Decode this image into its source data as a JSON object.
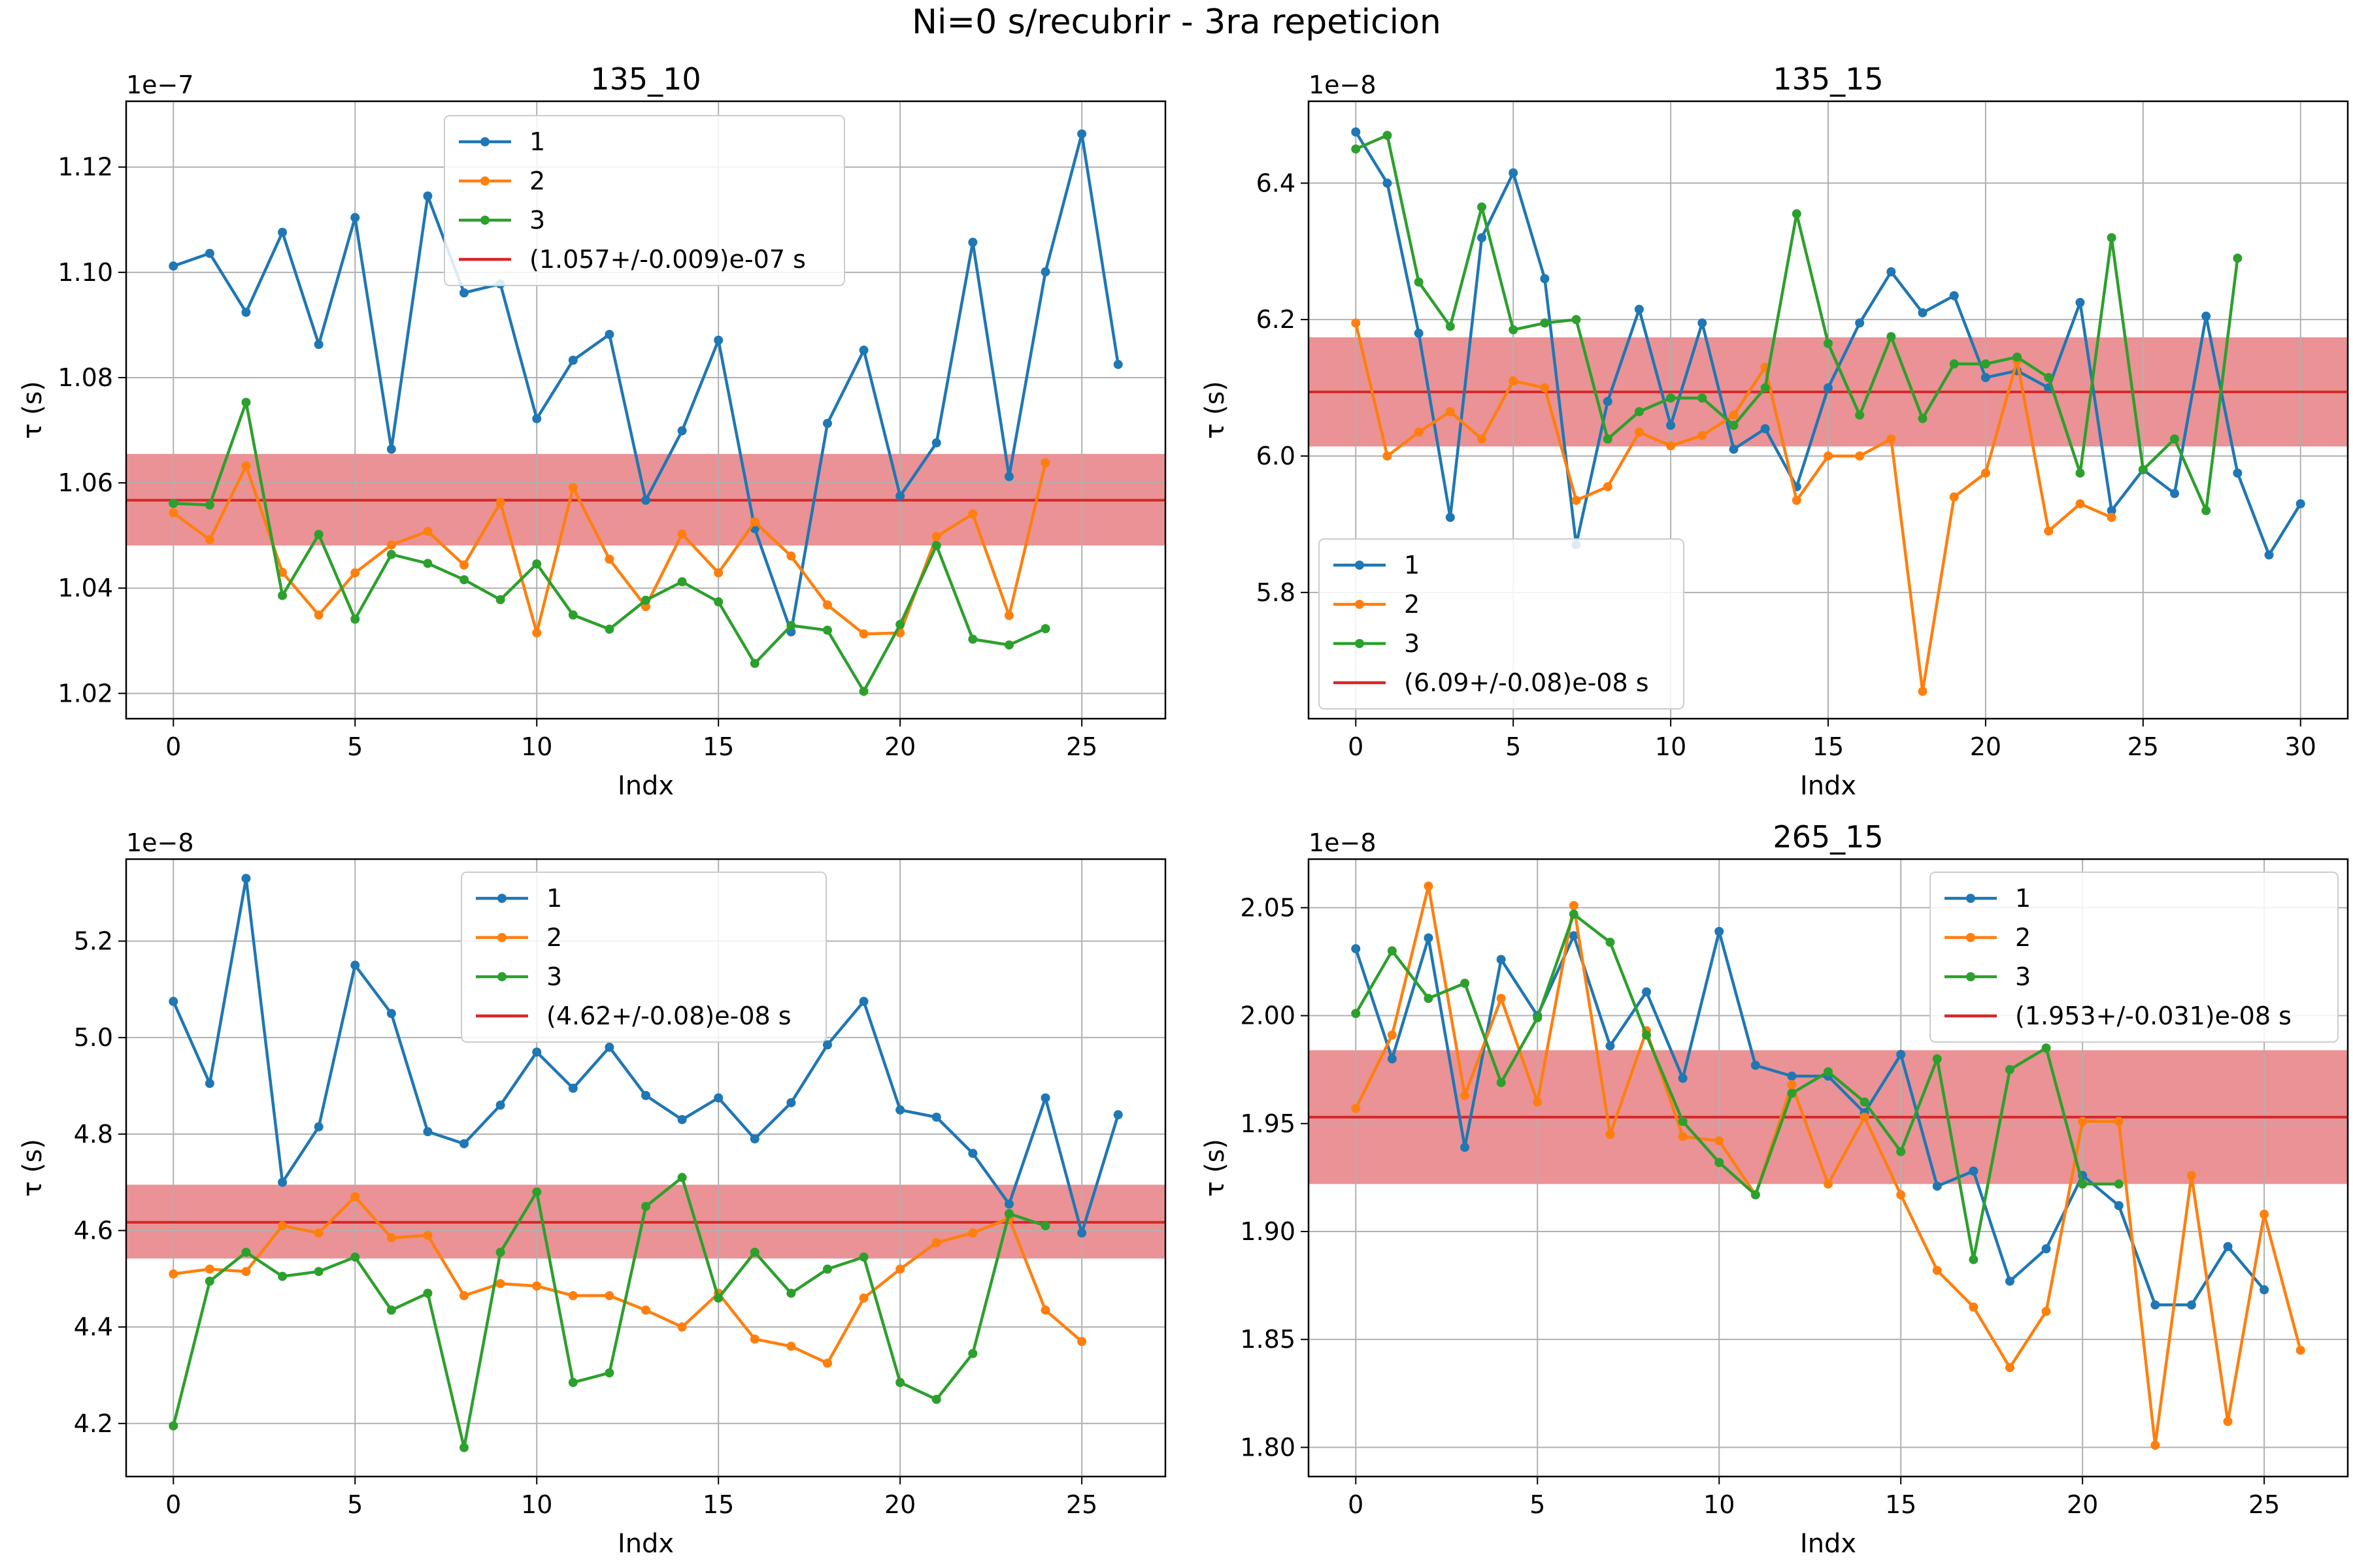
{
  "figure": {
    "title": "Ni=0 s/recubrir - 3ra repeticion"
  },
  "style": {
    "series_colors": [
      "#1f77b4",
      "#ff7f0e",
      "#2ca02c"
    ],
    "mean_color": "#d62728",
    "band_color": "#e8868a",
    "grid_color": "#b0b0b0"
  },
  "chart_data": [
    {
      "type": "line",
      "title": "135_10",
      "xlabel": "Indx",
      "ylabel": "τ (s)",
      "offset_text": "1e−7",
      "xlim": [
        -1.3,
        27.3
      ],
      "ylim": [
        1.0152,
        1.1325
      ],
      "xticks": [
        0,
        5,
        10,
        15,
        20,
        25
      ],
      "yticks": [
        1.02,
        1.04,
        1.06,
        1.08,
        1.1,
        1.12
      ],
      "ytick_decimals": 2,
      "grid": true,
      "legend": {
        "position": "upper center",
        "entries": [
          "1",
          "2",
          "3",
          "(1.057+/-0.009)e-07 s"
        ]
      },
      "mean": {
        "value": 1.0567,
        "low": 1.0481,
        "high": 1.0655
      },
      "series": [
        {
          "name": "1",
          "values": [
            1.1012,
            1.1036,
            1.0924,
            1.1076,
            1.0863,
            1.1104,
            1.0664,
            1.1145,
            1.0961,
            1.0978,
            1.0722,
            1.0833,
            1.0882,
            1.0567,
            1.0699,
            1.0871,
            1.0513,
            1.0317,
            1.0713,
            1.0852,
            1.0575,
            1.0676,
            1.1057,
            1.0612,
            1.1001,
            1.1263,
            1.0825
          ]
        },
        {
          "name": "2",
          "values": [
            1.0543,
            1.0492,
            1.0632,
            1.043,
            1.0349,
            1.0429,
            1.0482,
            1.0508,
            1.0444,
            1.0563,
            1.0315,
            1.0591,
            1.0455,
            1.0365,
            1.0503,
            1.0429,
            1.0526,
            1.0461,
            1.0368,
            1.0313,
            1.0315,
            1.0498,
            1.0541,
            1.0348,
            1.0638
          ]
        },
        {
          "name": "3",
          "values": [
            1.0561,
            1.0558,
            1.0753,
            1.0386,
            1.0502,
            1.0341,
            1.0464,
            1.0447,
            1.0416,
            1.0378,
            1.0446,
            1.0349,
            1.0322,
            1.0377,
            1.0412,
            1.0374,
            1.0257,
            1.0329,
            1.032,
            1.0204,
            1.0331,
            1.0481,
            1.0303,
            1.0292,
            1.0323
          ]
        }
      ]
    },
    {
      "type": "line",
      "title": "135_15",
      "xlabel": "Indx",
      "ylabel": "τ (s)",
      "offset_text": "1e−8",
      "xlim": [
        -1.5,
        31.5
      ],
      "ylim": [
        5.615,
        6.52
      ],
      "xticks": [
        0,
        5,
        10,
        15,
        20,
        25,
        30
      ],
      "yticks": [
        5.8,
        6.0,
        6.2,
        6.4
      ],
      "ytick_decimals": 1,
      "grid": true,
      "legend": {
        "position": "lower left",
        "entries": [
          "1",
          "2",
          "3",
          "(6.09+/-0.08)e-08 s"
        ]
      },
      "mean": {
        "value": 6.094,
        "low": 6.014,
        "high": 6.174
      },
      "series": [
        {
          "name": "1",
          "values": [
            6.475,
            6.4,
            6.18,
            5.91,
            6.32,
            6.415,
            6.26,
            5.87,
            6.08,
            6.215,
            6.045,
            6.195,
            6.01,
            6.04,
            5.955,
            6.1,
            6.195,
            6.27,
            6.21,
            6.235,
            6.115,
            6.125,
            6.1,
            6.225,
            5.92,
            5.98,
            5.945,
            6.205,
            5.975,
            5.855,
            5.93
          ]
        },
        {
          "name": "2",
          "values": [
            6.195,
            6.0,
            6.035,
            6.065,
            6.025,
            6.11,
            6.1,
            5.935,
            5.955,
            6.035,
            6.015,
            6.03,
            6.06,
            6.13,
            5.935,
            6.0,
            6.0,
            6.025,
            5.655,
            5.94,
            5.975,
            6.14,
            5.89,
            5.93,
            5.91
          ]
        },
        {
          "name": "3",
          "values": [
            6.45,
            6.47,
            6.255,
            6.19,
            6.365,
            6.185,
            6.195,
            6.2,
            6.025,
            6.065,
            6.085,
            6.085,
            6.045,
            6.1,
            6.355,
            6.165,
            6.06,
            6.175,
            6.055,
            6.135,
            6.135,
            6.145,
            6.115,
            5.975,
            6.32,
            5.98,
            6.025,
            5.92,
            6.29
          ]
        }
      ]
    },
    {
      "type": "line",
      "title": "",
      "xlabel": "Indx",
      "ylabel": "τ (s)",
      "offset_text": "1e−8",
      "xlim": [
        -1.3,
        27.3
      ],
      "ylim": [
        4.09,
        5.37
      ],
      "xticks": [
        0,
        5,
        10,
        15,
        20,
        25
      ],
      "yticks": [
        4.2,
        4.4,
        4.6,
        4.8,
        5.0,
        5.2
      ],
      "ytick_decimals": 1,
      "grid": true,
      "legend": {
        "position": "upper center",
        "entries": [
          "1",
          "2",
          "3",
          "(4.62+/-0.08)e-08 s"
        ]
      },
      "mean": {
        "value": 4.617,
        "low": 4.542,
        "high": 4.695
      },
      "series": [
        {
          "name": "1",
          "values": [
            5.075,
            4.905,
            5.33,
            4.7,
            4.815,
            5.15,
            5.05,
            4.805,
            4.78,
            4.86,
            4.97,
            4.895,
            4.98,
            4.88,
            4.83,
            4.875,
            4.79,
            4.865,
            4.985,
            5.075,
            4.85,
            4.835,
            4.76,
            4.655,
            4.875,
            4.595,
            4.84
          ]
        },
        {
          "name": "2",
          "values": [
            4.51,
            4.52,
            4.515,
            4.61,
            4.595,
            4.67,
            4.585,
            4.59,
            4.465,
            4.49,
            4.485,
            4.465,
            4.465,
            4.435,
            4.4,
            4.47,
            4.375,
            4.36,
            4.325,
            4.46,
            4.52,
            4.575,
            4.595,
            4.625,
            4.435,
            4.37
          ]
        },
        {
          "name": "3",
          "values": [
            4.195,
            4.495,
            4.555,
            4.505,
            4.515,
            4.545,
            4.435,
            4.47,
            4.15,
            4.555,
            4.68,
            4.285,
            4.305,
            4.65,
            4.71,
            4.46,
            4.555,
            4.47,
            4.52,
            4.545,
            4.285,
            4.25,
            4.345,
            4.635,
            4.61
          ]
        }
      ]
    },
    {
      "type": "line",
      "title": "265_15",
      "xlabel": "Indx",
      "ylabel": "τ (s)",
      "offset_text": "1e−8",
      "xlim": [
        -1.3,
        27.3
      ],
      "ylim": [
        1.7865,
        2.0725
      ],
      "xticks": [
        0,
        5,
        10,
        15,
        20,
        25
      ],
      "yticks": [
        1.8,
        1.85,
        1.9,
        1.95,
        2.0,
        2.05
      ],
      "ytick_decimals": 2,
      "grid": true,
      "legend": {
        "position": "upper right",
        "entries": [
          "1",
          "2",
          "3",
          "(1.953+/-0.031)e-08 s"
        ]
      },
      "mean": {
        "value": 1.953,
        "low": 1.922,
        "high": 1.984
      },
      "series": [
        {
          "name": "1",
          "values": [
            2.031,
            1.98,
            2.036,
            1.939,
            2.026,
            2.0,
            2.037,
            1.986,
            2.011,
            1.971,
            2.039,
            1.977,
            1.972,
            1.972,
            1.955,
            1.982,
            1.921,
            1.928,
            1.877,
            1.892,
            1.926,
            1.912,
            1.866,
            1.866,
            1.893,
            1.873
          ]
        },
        {
          "name": "2",
          "values": [
            1.957,
            1.991,
            2.06,
            1.963,
            2.008,
            1.96,
            2.051,
            1.945,
            1.993,
            1.944,
            1.942,
            1.917,
            1.968,
            1.922,
            1.953,
            1.917,
            1.882,
            1.865,
            1.837,
            1.863,
            1.951,
            1.951,
            1.801,
            1.926,
            1.812,
            1.908,
            1.845
          ]
        },
        {
          "name": "3",
          "values": [
            2.001,
            2.03,
            2.008,
            2.015,
            1.969,
            1.999,
            2.047,
            2.034,
            1.991,
            1.951,
            1.932,
            1.917,
            1.964,
            1.974,
            1.96,
            1.937,
            1.98,
            1.887,
            1.975,
            1.985,
            1.922,
            1.922
          ]
        }
      ]
    }
  ]
}
